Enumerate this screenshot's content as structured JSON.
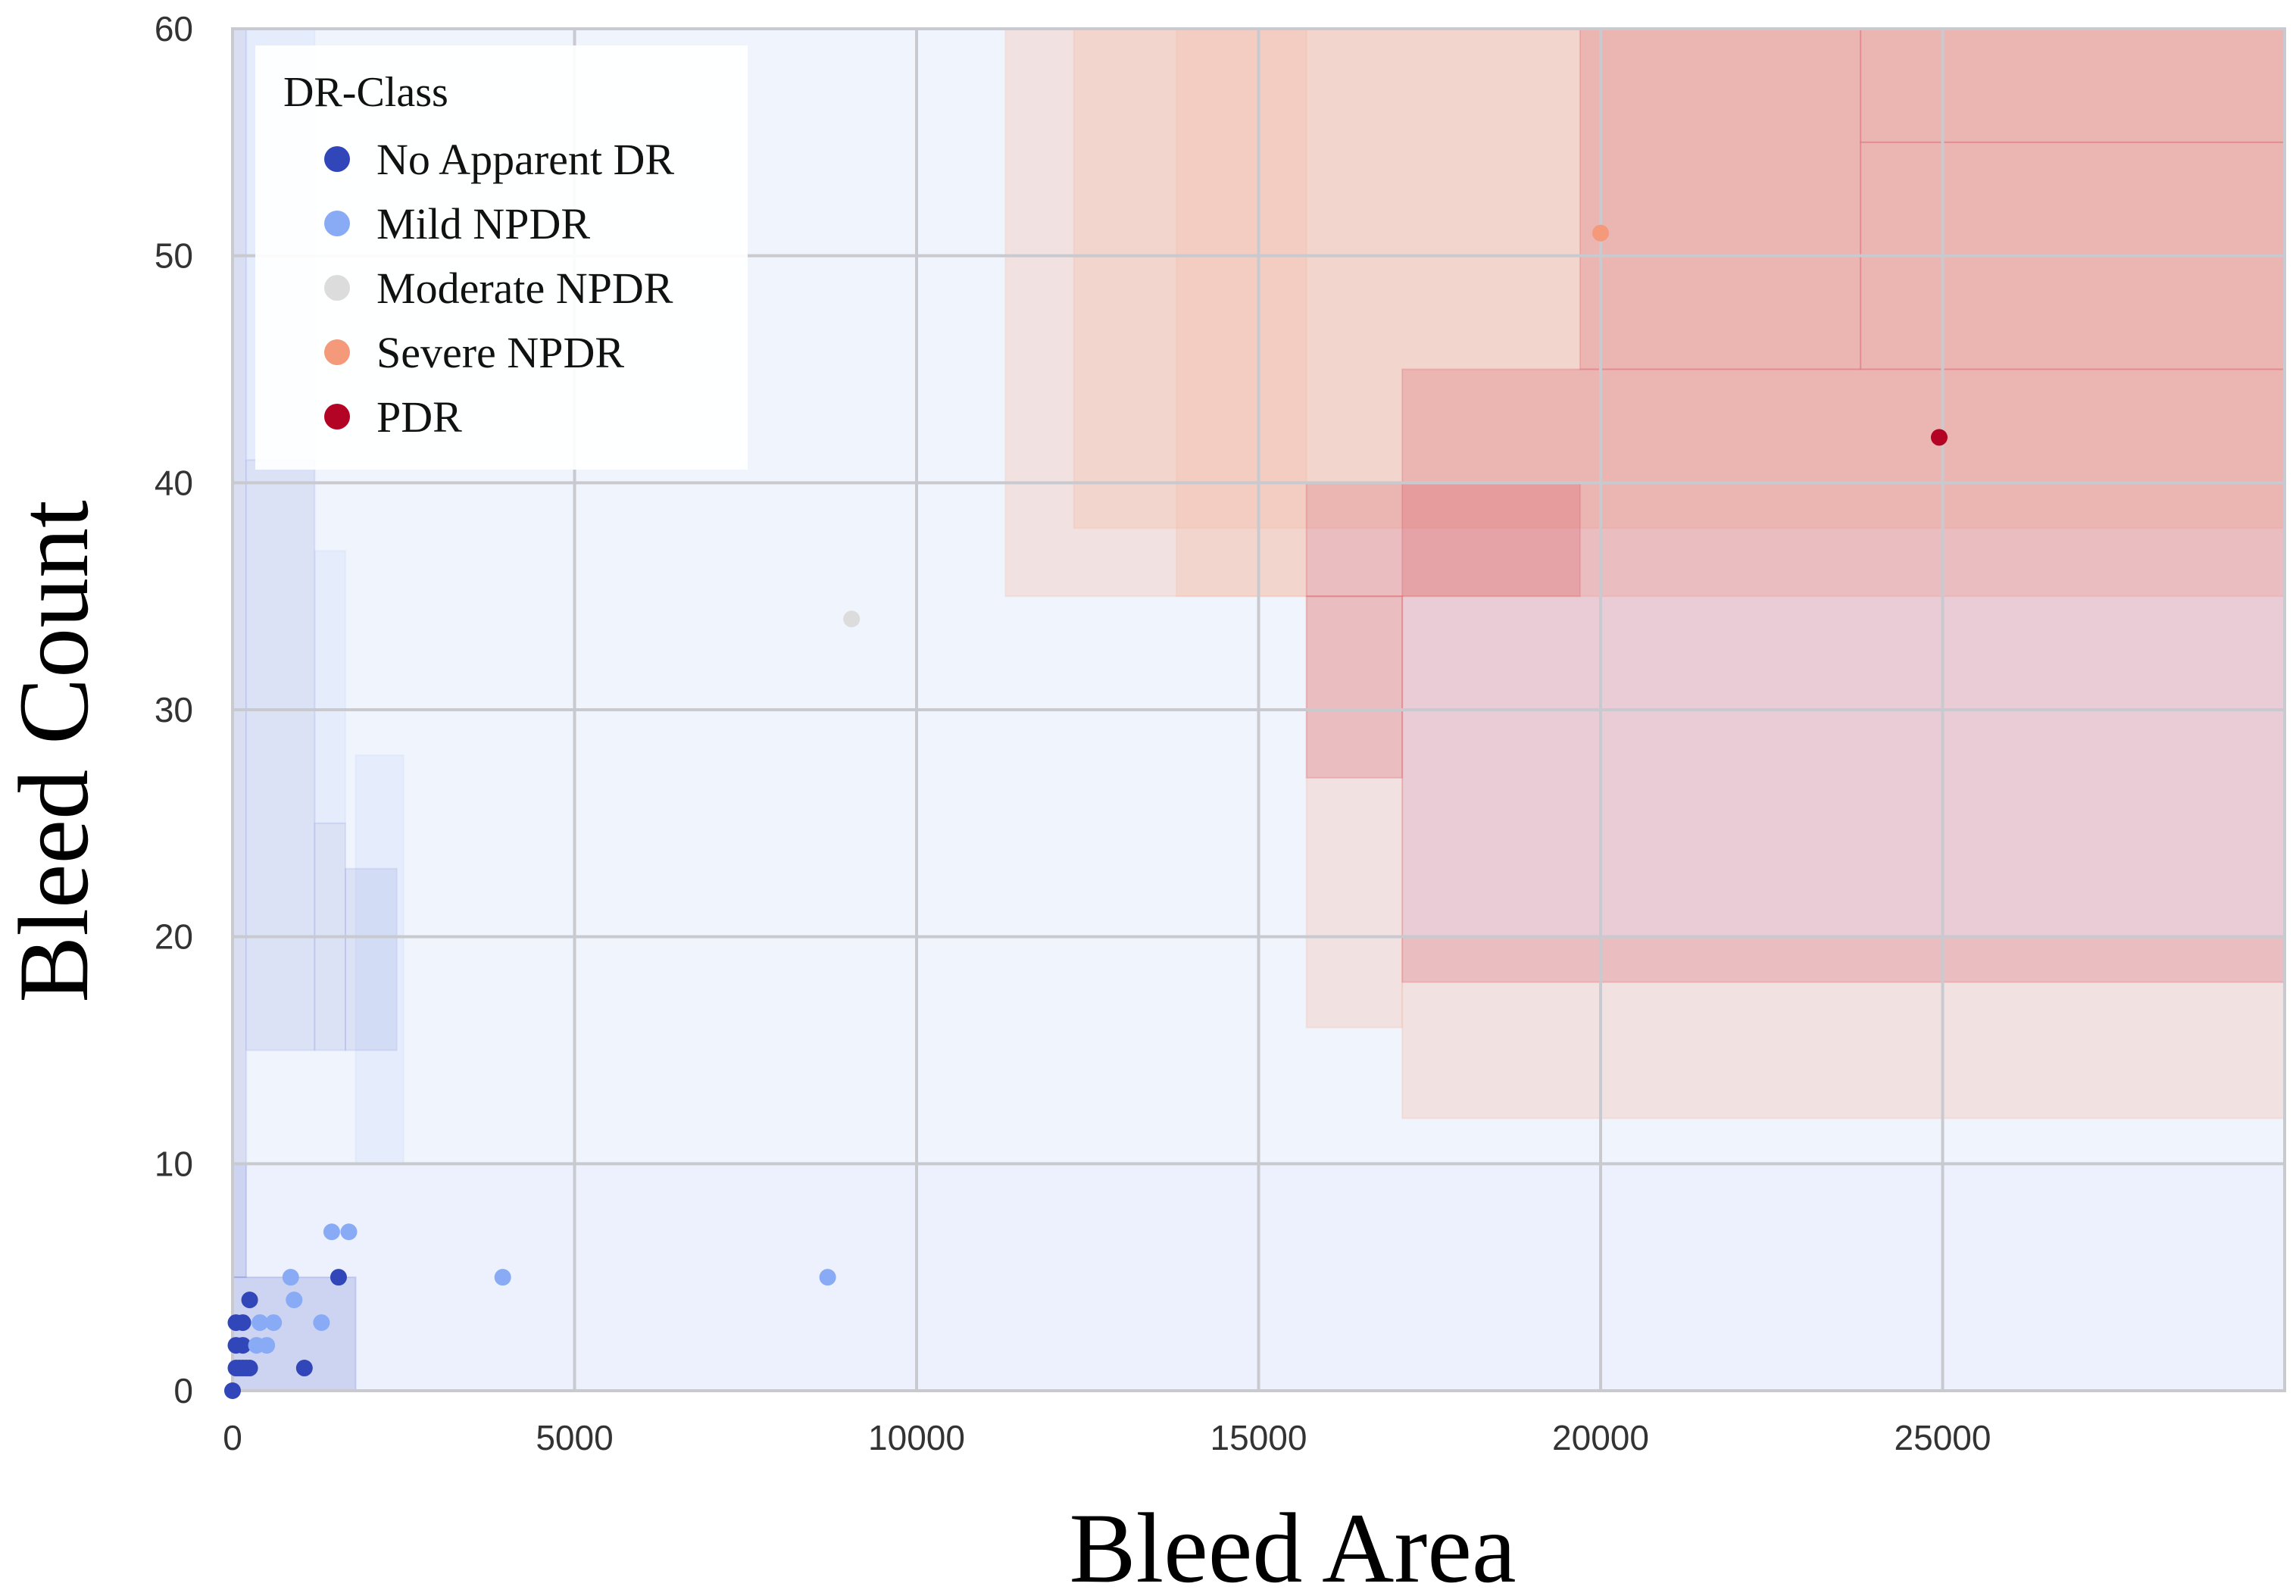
{
  "chart_data": {
    "type": "scatter",
    "title": "",
    "xlabel": "Bleed Area",
    "ylabel": "Bleed Count",
    "xlim": [
      0,
      30000
    ],
    "ylim": [
      0,
      60
    ],
    "x_ticks": [
      0,
      5000,
      10000,
      15000,
      20000,
      25000
    ],
    "x_tick_labels": [
      "0",
      "5000",
      "10000",
      "15000",
      "20000",
      "25000"
    ],
    "y_ticks": [
      0,
      10,
      20,
      30,
      40,
      50,
      60
    ],
    "y_tick_labels": [
      "0",
      "10",
      "20",
      "30",
      "40",
      "50",
      "60"
    ],
    "grid": true,
    "legend_title": "DR-Class",
    "legend_position": "top-left",
    "series": [
      {
        "name": "No Apparent DR",
        "color": "#3146b8",
        "points": [
          [
            0,
            0
          ],
          [
            50,
            1
          ],
          [
            100,
            1
          ],
          [
            150,
            1
          ],
          [
            200,
            1
          ],
          [
            250,
            1
          ],
          [
            50,
            2
          ],
          [
            150,
            2
          ],
          [
            50,
            3
          ],
          [
            150,
            3
          ],
          [
            250,
            4
          ],
          [
            1050,
            1
          ],
          [
            1550,
            5
          ]
        ]
      },
      {
        "name": "Mild NPDR",
        "color": "#89aaf5",
        "points": [
          [
            350,
            2
          ],
          [
            500,
            2
          ],
          [
            400,
            3
          ],
          [
            600,
            3
          ],
          [
            900,
            4
          ],
          [
            850,
            5
          ],
          [
            1300,
            3
          ],
          [
            1450,
            7
          ],
          [
            1700,
            7
          ],
          [
            3950,
            5
          ],
          [
            8700,
            5
          ]
        ]
      },
      {
        "name": "Moderate NPDR",
        "color": "#dcdcdc",
        "points": [
          [
            9050,
            34
          ]
        ]
      },
      {
        "name": "Severe NPDR",
        "color": "#f4997a",
        "points": [
          [
            20000,
            51
          ]
        ]
      },
      {
        "name": "PDR",
        "color": "#b40426",
        "points": [
          [
            24950,
            42
          ]
        ]
      }
    ],
    "decision_regions": [
      {
        "class": "No Apparent DR",
        "color": "#3146b8",
        "opacity": 0.18,
        "rects": [
          [
            0,
            5,
            200,
            60
          ],
          [
            200,
            15,
            1200,
            41
          ],
          [
            1200,
            15,
            1650,
            25
          ],
          [
            1650,
            15,
            2400,
            23
          ],
          [
            0,
            0,
            1800,
            5
          ]
        ]
      },
      {
        "class": "Mild NPDR",
        "color": "#6f8fef",
        "opacity": 0.12,
        "rects": [
          [
            0,
            0,
            30000,
            10
          ],
          [
            1800,
            10,
            2500,
            28
          ],
          [
            1200,
            25,
            1650,
            37
          ],
          [
            200,
            41,
            1200,
            60
          ]
        ]
      },
      {
        "class": "Moderate NPDR",
        "color": "#dce7fb",
        "opacity": 0.45,
        "rects": [
          [
            200,
            10,
            30000,
            60
          ]
        ]
      },
      {
        "class": "Severe NPDR",
        "color": "#f6b8a2",
        "opacity": 0.3,
        "rects": [
          [
            11300,
            35,
            30000,
            60
          ],
          [
            12300,
            38,
            30000,
            60
          ],
          [
            13800,
            35,
            15700,
            60
          ],
          [
            15700,
            16,
            17100,
            35
          ],
          [
            17100,
            12,
            30000,
            20
          ]
        ]
      },
      {
        "class": "PDR",
        "color": "#d9525e",
        "opacity": 0.25,
        "rects": [
          [
            15700,
            27,
            17100,
            35
          ],
          [
            15700,
            35,
            19700,
            40
          ],
          [
            17100,
            18,
            30000,
            45
          ],
          [
            19700,
            45,
            23800,
            60
          ],
          [
            23800,
            55,
            30000,
            60
          ],
          [
            23800,
            45,
            30000,
            55
          ]
        ]
      }
    ]
  }
}
